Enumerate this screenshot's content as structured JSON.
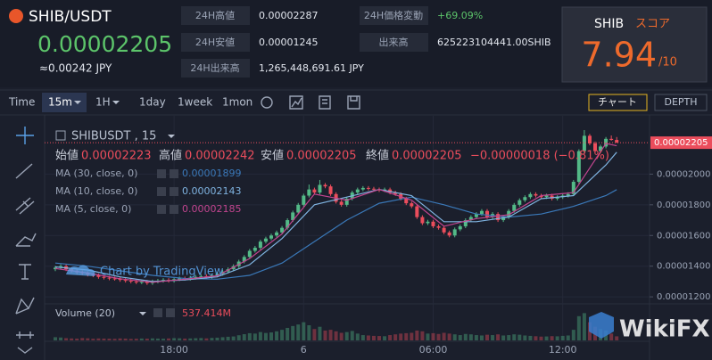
{
  "header": {
    "symbol": "SHIB/USDT",
    "price": "0.00002205",
    "price_jpy": "≈0.00242 JPY"
  },
  "stats": [
    {
      "label": "24H高値",
      "value": "0.00002287"
    },
    {
      "label": "24H安値",
      "value": "0.00001245"
    },
    {
      "label": "24H出来高",
      "value": "1,265,448,691.61 JPY"
    },
    {
      "label": "24H価格変動",
      "value": "+69.09%"
    },
    {
      "label": "出来高",
      "value": "625223104441.00SHIB"
    }
  ],
  "score": {
    "name": "SHIB",
    "label": "スコア",
    "value": 7.94,
    "max": "/10"
  },
  "toolbar": {
    "items": [
      "Time",
      "15m",
      "1H",
      "1day",
      "1week",
      "1mon"
    ],
    "chart": "チャート",
    "depth": "DEPTH"
  },
  "chart_data": {
    "type": "candlestick",
    "symbol_label": "SHIBUSDT , 15",
    "ohlc_labels": [
      "始値",
      "高値",
      "安値",
      "終値"
    ],
    "change": "−0.00000018 (−0.81%)",
    "watermark": "Chart by TradingView",
    "up_color": "#53b987",
    "down_color": "#eb4d5c",
    "ylim": [
      1.16e-05,
      2.38e-05
    ],
    "yticks": [
      {
        "value": 1.2e-05,
        "label": "0.00001200"
      },
      {
        "value": 1.4e-05,
        "label": "0.00001400"
      },
      {
        "value": 1.6e-05,
        "label": "0.00001600"
      },
      {
        "value": 1.8e-05,
        "label": "0.00001800"
      },
      {
        "value": 2e-05,
        "label": "0.00002000"
      }
    ],
    "categories": [
      null,
      null,
      null,
      null,
      null,
      null,
      null,
      null,
      null,
      null,
      null,
      null,
      null,
      null,
      null,
      null,
      null,
      null,
      null,
      null,
      null,
      null,
      "18:00",
      null,
      null,
      null,
      null,
      null,
      null,
      null,
      null,
      null,
      null,
      null,
      null,
      null,
      null,
      null,
      null,
      null,
      null,
      null,
      null,
      null,
      null,
      null,
      "6",
      null,
      null,
      null,
      null,
      null,
      null,
      null,
      null,
      null,
      null,
      null,
      null,
      null,
      null,
      null,
      null,
      null,
      null,
      null,
      null,
      null,
      null,
      null,
      "06:00",
      null,
      null,
      null,
      null,
      null,
      null,
      null,
      null,
      null,
      null,
      null,
      null,
      null,
      null,
      null,
      null,
      null,
      null,
      null,
      null,
      null,
      null,
      null,
      "12:00",
      null,
      null,
      null,
      null,
      null,
      null,
      null,
      null,
      null,
      null
    ],
    "candles": [
      [
        1.38e-05,
        1.402e-05,
        1.368e-05,
        1.39e-05
      ],
      [
        1.39e-05,
        1.412e-05,
        1.378e-05,
        1.4e-05
      ],
      [
        1.4e-05,
        1.412e-05,
        1.368e-05,
        1.38e-05
      ],
      [
        1.38e-05,
        1.392e-05,
        1.358e-05,
        1.37e-05
      ],
      [
        1.37e-05,
        1.382e-05,
        1.348e-05,
        1.36e-05
      ],
      [
        1.36e-05,
        1.372e-05,
        1.343e-05,
        1.355e-05
      ],
      [
        1.355e-05,
        1.367e-05,
        1.333e-05,
        1.345e-05
      ],
      [
        1.345e-05,
        1.357e-05,
        1.328e-05,
        1.34e-05
      ],
      [
        1.34e-05,
        1.352e-05,
        1.318e-05,
        1.33e-05
      ],
      [
        1.33e-05,
        1.342e-05,
        1.313e-05,
        1.325e-05
      ],
      [
        1.325e-05,
        1.337e-05,
        1.308e-05,
        1.32e-05
      ],
      [
        1.32e-05,
        1.332e-05,
        1.306e-05,
        1.318e-05
      ],
      [
        1.318e-05,
        1.33e-05,
        1.298e-05,
        1.31e-05
      ],
      [
        1.31e-05,
        1.322e-05,
        1.293e-05,
        1.305e-05
      ],
      [
        1.305e-05,
        1.317e-05,
        1.288e-05,
        1.3e-05
      ],
      [
        1.3e-05,
        1.312e-05,
        1.283e-05,
        1.295e-05
      ],
      [
        1.295e-05,
        1.31e-05,
        1.283e-05,
        1.298e-05
      ],
      [
        1.298e-05,
        1.31e-05,
        1.278e-05,
        1.29e-05
      ],
      [
        1.29e-05,
        1.312e-05,
        1.278e-05,
        1.3e-05
      ],
      [
        1.3e-05,
        1.317e-05,
        1.288e-05,
        1.305e-05
      ],
      [
        1.305e-05,
        1.322e-05,
        1.293e-05,
        1.31e-05
      ],
      [
        1.31e-05,
        1.322e-05,
        1.293e-05,
        1.305e-05
      ],
      [
        1.305e-05,
        1.327e-05,
        1.293e-05,
        1.315e-05
      ],
      [
        1.315e-05,
        1.332e-05,
        1.303e-05,
        1.32e-05
      ],
      [
        1.32e-05,
        1.332e-05,
        1.306e-05,
        1.318e-05
      ],
      [
        1.318e-05,
        1.337e-05,
        1.306e-05,
        1.325e-05
      ],
      [
        1.325e-05,
        1.342e-05,
        1.313e-05,
        1.33e-05
      ],
      [
        1.33e-05,
        1.347e-05,
        1.318e-05,
        1.335e-05
      ],
      [
        1.335e-05,
        1.347e-05,
        1.318e-05,
        1.33e-05
      ],
      [
        1.33e-05,
        1.352e-05,
        1.318e-05,
        1.34e-05
      ],
      [
        1.34e-05,
        1.362e-05,
        1.328e-05,
        1.35e-05
      ],
      [
        1.35e-05,
        1.377e-05,
        1.338e-05,
        1.365e-05
      ],
      [
        1.365e-05,
        1.392e-05,
        1.353e-05,
        1.38e-05
      ],
      [
        1.38e-05,
        1.412e-05,
        1.368e-05,
        1.4e-05
      ],
      [
        1.4e-05,
        1.442e-05,
        1.388e-05,
        1.43e-05
      ],
      [
        1.43e-05,
        1.472e-05,
        1.418e-05,
        1.46e-05
      ],
      [
        1.46e-05,
        1.512e-05,
        1.448e-05,
        1.5e-05
      ],
      [
        1.5e-05,
        1.532e-05,
        1.488e-05,
        1.52e-05
      ],
      [
        1.52e-05,
        1.572e-05,
        1.508e-05,
        1.56e-05
      ],
      [
        1.56e-05,
        1.592e-05,
        1.548e-05,
        1.58e-05
      ],
      [
        1.58e-05,
        1.612e-05,
        1.568e-05,
        1.6e-05
      ],
      [
        1.6e-05,
        1.632e-05,
        1.588e-05,
        1.62e-05
      ],
      [
        1.62e-05,
        1.662e-05,
        1.608e-05,
        1.65e-05
      ],
      [
        1.65e-05,
        1.712e-05,
        1.638e-05,
        1.7e-05
      ],
      [
        1.7e-05,
        1.762e-05,
        1.688e-05,
        1.75e-05
      ],
      [
        1.75e-05,
        1.812e-05,
        1.738e-05,
        1.8e-05
      ],
      [
        1.8e-05,
        1.872e-05,
        1.788e-05,
        1.86e-05
      ],
      [
        1.86e-05,
        1.932e-05,
        1.848e-05,
        1.9e-05
      ],
      [
        1.9e-05,
        1.912e-05,
        1.868e-05,
        1.88e-05
      ],
      [
        1.88e-05,
        1.962e-05,
        1.868e-05,
        1.93e-05
      ],
      [
        1.93e-05,
        1.942e-05,
        1.908e-05,
        1.92e-05
      ],
      [
        1.92e-05,
        1.932e-05,
        1.858e-05,
        1.87e-05
      ],
      [
        1.87e-05,
        1.882e-05,
        1.808e-05,
        1.82e-05
      ],
      [
        1.82e-05,
        1.832e-05,
        1.788e-05,
        1.8e-05
      ],
      [
        1.8e-05,
        1.852e-05,
        1.788e-05,
        1.84e-05
      ],
      [
        1.84e-05,
        1.892e-05,
        1.828e-05,
        1.88e-05
      ],
      [
        1.88e-05,
        1.912e-05,
        1.868e-05,
        1.9e-05
      ],
      [
        1.9e-05,
        1.922e-05,
        1.888e-05,
        1.91e-05
      ],
      [
        1.91e-05,
        1.922e-05,
        1.893e-05,
        1.905e-05
      ],
      [
        1.905e-05,
        1.917e-05,
        1.888e-05,
        1.9e-05
      ],
      [
        1.9e-05,
        1.912e-05,
        1.883e-05,
        1.895e-05
      ],
      [
        1.895e-05,
        1.912e-05,
        1.883e-05,
        1.9e-05
      ],
      [
        1.9e-05,
        1.912e-05,
        1.868e-05,
        1.88e-05
      ],
      [
        1.88e-05,
        1.892e-05,
        1.858e-05,
        1.87e-05
      ],
      [
        1.87e-05,
        1.882e-05,
        1.828e-05,
        1.84e-05
      ],
      [
        1.84e-05,
        1.852e-05,
        1.798e-05,
        1.81e-05
      ],
      [
        1.81e-05,
        1.822e-05,
        1.778e-05,
        1.79e-05
      ],
      [
        1.79e-05,
        1.802e-05,
        1.708e-05,
        1.72e-05
      ],
      [
        1.72e-05,
        1.732e-05,
        1.668e-05,
        1.68e-05
      ],
      [
        1.68e-05,
        1.702e-05,
        1.668e-05,
        1.69e-05
      ],
      [
        1.69e-05,
        1.702e-05,
        1.648e-05,
        1.66e-05
      ],
      [
        1.66e-05,
        1.672e-05,
        1.638e-05,
        1.65e-05
      ],
      [
        1.65e-05,
        1.662e-05,
        1.608e-05,
        1.62e-05
      ],
      [
        1.62e-05,
        1.632e-05,
        1.588e-05,
        1.6e-05
      ],
      [
        1.6e-05,
        1.652e-05,
        1.588e-05,
        1.64e-05
      ],
      [
        1.64e-05,
        1.672e-05,
        1.628e-05,
        1.66e-05
      ],
      [
        1.66e-05,
        1.712e-05,
        1.648e-05,
        1.7e-05
      ],
      [
        1.7e-05,
        1.732e-05,
        1.688e-05,
        1.72e-05
      ],
      [
        1.72e-05,
        1.752e-05,
        1.708e-05,
        1.74e-05
      ],
      [
        1.74e-05,
        1.772e-05,
        1.728e-05,
        1.76e-05
      ],
      [
        1.76e-05,
        1.772e-05,
        1.708e-05,
        1.72e-05
      ],
      [
        1.72e-05,
        1.752e-05,
        1.708e-05,
        1.74e-05
      ],
      [
        1.74e-05,
        1.752e-05,
        1.688e-05,
        1.7e-05
      ],
      [
        1.7e-05,
        1.732e-05,
        1.688e-05,
        1.72e-05
      ],
      [
        1.72e-05,
        1.772e-05,
        1.708e-05,
        1.76e-05
      ],
      [
        1.76e-05,
        1.812e-05,
        1.748e-05,
        1.8e-05
      ],
      [
        1.8e-05,
        1.842e-05,
        1.788e-05,
        1.83e-05
      ],
      [
        1.83e-05,
        1.862e-05,
        1.818e-05,
        1.85e-05
      ],
      [
        1.85e-05,
        1.882e-05,
        1.838e-05,
        1.87e-05
      ],
      [
        1.87e-05,
        1.882e-05,
        1.848e-05,
        1.86e-05
      ],
      [
        1.86e-05,
        1.872e-05,
        1.838e-05,
        1.85e-05
      ],
      [
        1.85e-05,
        1.872e-05,
        1.838e-05,
        1.86e-05
      ],
      [
        1.86e-05,
        1.872e-05,
        1.828e-05,
        1.84e-05
      ],
      [
        1.84e-05,
        1.862e-05,
        1.828e-05,
        1.85e-05
      ],
      [
        1.85e-05,
        1.872e-05,
        1.838e-05,
        1.86e-05
      ],
      [
        1.86e-05,
        1.882e-05,
        1.848e-05,
        1.87e-05
      ],
      [
        1.87e-05,
        1.962e-05,
        1.858e-05,
        1.95e-05
      ],
      [
        1.95e-05,
        2.162e-05,
        1.938e-05,
        2.15e-05
      ],
      [
        2.15e-05,
        2.287e-05,
        2.138e-05,
        2.25e-05
      ],
      [
        2.25e-05,
        2.262e-05,
        2.188e-05,
        2.2e-05
      ],
      [
        2.2e-05,
        2.212e-05,
        2.138e-05,
        2.15e-05
      ],
      [
        2.15e-05,
        2.192e-05,
        2.138e-05,
        2.18e-05
      ],
      [
        2.18e-05,
        2.242e-05,
        2.168e-05,
        2.23e-05
      ],
      [
        2.23e-05,
        2.252e-05,
        2.218e-05,
        2.223e-05
      ],
      [
        2.223e-05,
        2.242e-05,
        2.205e-05,
        2.205e-05
      ]
    ],
    "ma": [
      {
        "name": "MA (30, close, 0)",
        "color": "#3a78b8",
        "x": [
          0,
          6,
          12,
          18,
          24,
          30,
          36,
          42,
          48,
          54,
          60,
          66,
          72,
          78,
          84,
          90,
          96,
          102,
          104
        ],
        "values": [
          1.42e-05,
          1.4e-05,
          1.37e-05,
          1.34e-05,
          1.32e-05,
          1.315e-05,
          1.34e-05,
          1.42e-05,
          1.56e-05,
          1.7e-05,
          1.81e-05,
          1.85e-05,
          1.8e-05,
          1.74e-05,
          1.72e-05,
          1.74e-05,
          1.79e-05,
          1.86e-05,
          1.899e-05
        ]
      },
      {
        "name": "MA (10, close, 0)",
        "color": "#7fb3e0",
        "x": [
          0,
          6,
          12,
          18,
          24,
          30,
          36,
          42,
          48,
          54,
          60,
          66,
          72,
          78,
          84,
          90,
          96,
          102,
          104
        ],
        "values": [
          1.395e-05,
          1.375e-05,
          1.33e-05,
          1.3e-05,
          1.31e-05,
          1.33e-05,
          1.41e-05,
          1.58e-05,
          1.8e-05,
          1.85e-05,
          1.9e-05,
          1.86e-05,
          1.69e-05,
          1.69e-05,
          1.72e-05,
          1.84e-05,
          1.86e-05,
          2.06e-05,
          2.143e-05
        ]
      },
      {
        "name": "MA (5, close, 0)",
        "color": "#c2458f",
        "x": [
          0,
          6,
          12,
          18,
          24,
          30,
          36,
          42,
          48,
          54,
          60,
          66,
          72,
          78,
          84,
          90,
          96,
          102,
          104
        ],
        "values": [
          1.385e-05,
          1.355e-05,
          1.318e-05,
          1.295e-05,
          1.315e-05,
          1.337e-05,
          1.45e-05,
          1.61e-05,
          1.87e-05,
          1.83e-05,
          1.9e-05,
          1.83e-05,
          1.66e-05,
          1.71e-05,
          1.735e-05,
          1.86e-05,
          1.88e-05,
          2.2e-05,
          2.185e-05
        ]
      }
    ],
    "volume": {
      "name": "Volume (20)",
      "last_label": "537.414M",
      "values": [
        420,
        380,
        300,
        260,
        240,
        310,
        280,
        220,
        260,
        240,
        230,
        210,
        260,
        240,
        200,
        220,
        250,
        230,
        270,
        240,
        220,
        260,
        300,
        280,
        240,
        260,
        290,
        310,
        270,
        330,
        360,
        420,
        480,
        520,
        680,
        820,
        950,
        900,
        1100,
        980,
        1050,
        1200,
        1400,
        1650,
        1900,
        2100,
        2400,
        2000,
        1500,
        1800,
        1300,
        1400,
        1200,
        1000,
        1100,
        1250,
        900,
        700,
        650,
        600,
        580,
        550,
        700,
        800,
        900,
        950,
        1000,
        1300,
        1200,
        900,
        950,
        850,
        1000,
        900,
        800,
        700,
        850,
        800,
        700,
        650,
        750,
        700,
        800,
        650,
        700,
        800,
        750,
        650,
        600,
        550,
        500,
        520,
        560,
        540,
        600,
        650,
        1400,
        3200,
        3600,
        2400,
        1800,
        1500,
        1300,
        900,
        537.414
      ]
    }
  },
  "watermark": "WikiFX"
}
